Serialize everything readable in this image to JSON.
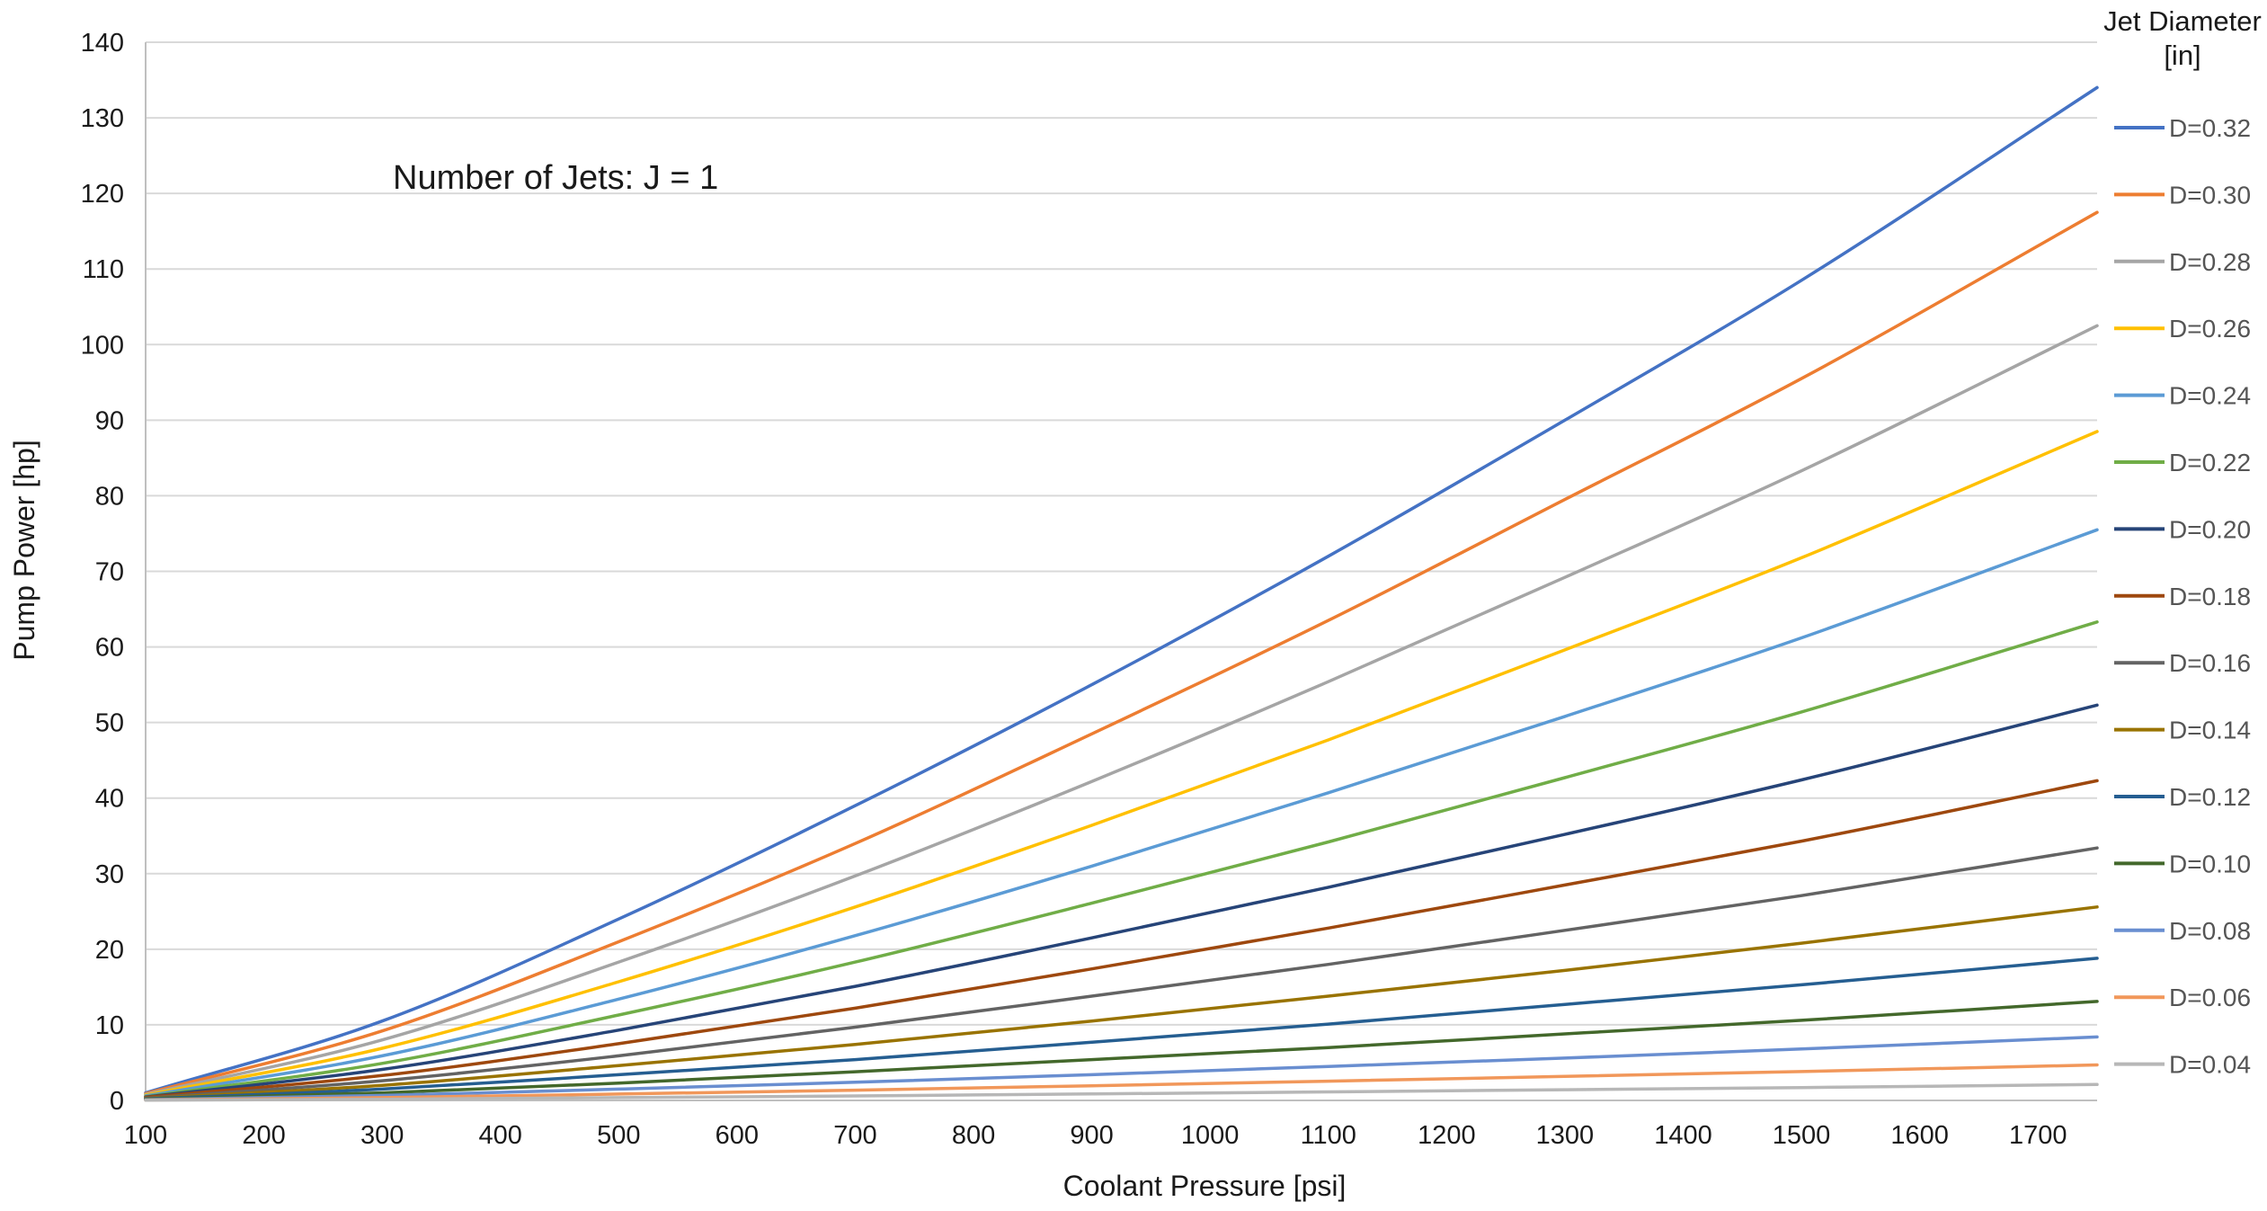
{
  "chart_data": {
    "type": "line",
    "title": "",
    "annotation": "Number of Jets: J = 1",
    "xlabel": "Coolant Pressure [psi]",
    "ylabel": "Pump Power [hp]",
    "xlim": [
      100,
      1750
    ],
    "ylim": [
      0,
      140
    ],
    "x_ticks": [
      100,
      200,
      300,
      400,
      500,
      600,
      700,
      800,
      900,
      1000,
      1100,
      1200,
      1300,
      1400,
      1500,
      1600,
      1700
    ],
    "y_ticks": [
      0,
      10,
      20,
      30,
      40,
      50,
      60,
      70,
      80,
      90,
      100,
      110,
      120,
      130,
      140
    ],
    "grid": "horizontal",
    "legend": {
      "title_line1": "Jet Diameter",
      "title_line2": "[in]",
      "placement": "right"
    },
    "series": [
      {
        "name": "D=0.32",
        "color": "#4472c4",
        "x": [
          100,
          300,
          500,
          700,
          900,
          1100,
          1300,
          1500,
          1750
        ],
        "values": [
          1.0,
          10.5,
          24.0,
          39.0,
          55.0,
          72.0,
          90.0,
          108.5,
          134.0
        ]
      },
      {
        "name": "D=0.30",
        "color": "#ed7d31",
        "x": [
          100,
          300,
          500,
          700,
          900,
          1100,
          1300,
          1500,
          1750
        ],
        "values": [
          0.9,
          9.2,
          21.0,
          34.0,
          48.5,
          63.5,
          79.5,
          95.5,
          117.5
        ]
      },
      {
        "name": "D=0.28",
        "color": "#a5a5a5",
        "x": [
          100,
          300,
          500,
          700,
          900,
          1100,
          1300,
          1500,
          1750
        ],
        "values": [
          0.8,
          8.0,
          18.3,
          29.7,
          42.2,
          55.4,
          69.2,
          83.3,
          102.5
        ]
      },
      {
        "name": "D=0.26",
        "color": "#ffc000",
        "x": [
          100,
          300,
          500,
          700,
          900,
          1100,
          1300,
          1500,
          1750
        ],
        "values": [
          0.7,
          6.9,
          15.7,
          25.6,
          36.4,
          47.7,
          59.6,
          71.8,
          88.5
        ]
      },
      {
        "name": "D=0.24",
        "color": "#5b9bd5",
        "x": [
          100,
          300,
          500,
          700,
          900,
          1100,
          1300,
          1500,
          1750
        ],
        "values": [
          0.6,
          5.9,
          13.4,
          21.8,
          31.0,
          40.7,
          50.8,
          61.2,
          75.5
        ]
      },
      {
        "name": "D=0.22",
        "color": "#70ad47",
        "x": [
          100,
          300,
          500,
          700,
          900,
          1100,
          1300,
          1500,
          1750
        ],
        "values": [
          0.5,
          4.9,
          11.3,
          18.3,
          26.1,
          34.2,
          42.7,
          51.4,
          63.3
        ]
      },
      {
        "name": "D=0.20",
        "color": "#264478",
        "x": [
          100,
          300,
          500,
          700,
          900,
          1100,
          1300,
          1500,
          1750
        ],
        "values": [
          0.45,
          4.1,
          9.3,
          15.1,
          21.5,
          28.2,
          35.2,
          42.4,
          52.3
        ]
      },
      {
        "name": "D=0.18",
        "color": "#9e480e",
        "x": [
          100,
          300,
          500,
          700,
          900,
          1100,
          1300,
          1500,
          1750
        ],
        "values": [
          0.4,
          3.3,
          7.5,
          12.2,
          17.4,
          22.8,
          28.5,
          34.3,
          42.3
        ]
      },
      {
        "name": "D=0.16",
        "color": "#636363",
        "x": [
          100,
          300,
          500,
          700,
          900,
          1100,
          1300,
          1500,
          1750
        ],
        "values": [
          0.3,
          2.6,
          5.9,
          9.7,
          13.8,
          18.0,
          22.5,
          27.1,
          33.4
        ]
      },
      {
        "name": "D=0.14",
        "color": "#997300",
        "x": [
          100,
          300,
          500,
          700,
          900,
          1100,
          1300,
          1500,
          1750
        ],
        "values": [
          0.25,
          2.0,
          4.6,
          7.4,
          10.5,
          13.8,
          17.2,
          20.8,
          25.6
        ]
      },
      {
        "name": "D=0.12",
        "color": "#255e91",
        "x": [
          100,
          300,
          500,
          700,
          900,
          1100,
          1300,
          1500,
          1750
        ],
        "values": [
          0.2,
          1.5,
          3.4,
          5.4,
          7.7,
          10.1,
          12.7,
          15.3,
          18.8
        ]
      },
      {
        "name": "D=0.10",
        "color": "#43682b",
        "x": [
          100,
          300,
          500,
          700,
          900,
          1100,
          1300,
          1500,
          1750
        ],
        "values": [
          0.15,
          1.0,
          2.3,
          3.8,
          5.4,
          7.0,
          8.8,
          10.6,
          13.1
        ]
      },
      {
        "name": "D=0.08",
        "color": "#698ed0",
        "x": [
          100,
          300,
          500,
          700,
          900,
          1100,
          1300,
          1500,
          1750
        ],
        "values": [
          0.1,
          0.65,
          1.5,
          2.4,
          3.4,
          4.5,
          5.6,
          6.8,
          8.4
        ]
      },
      {
        "name": "D=0.06",
        "color": "#f1975a",
        "x": [
          100,
          300,
          500,
          700,
          900,
          1100,
          1300,
          1500,
          1750
        ],
        "values": [
          0.05,
          0.37,
          0.84,
          1.36,
          1.94,
          2.54,
          3.17,
          3.82,
          4.7
        ]
      },
      {
        "name": "D=0.04",
        "color": "#b7b7b7",
        "x": [
          100,
          300,
          500,
          700,
          900,
          1100,
          1300,
          1500,
          1750
        ],
        "values": [
          0.03,
          0.16,
          0.37,
          0.6,
          0.86,
          1.13,
          1.41,
          1.7,
          2.1
        ]
      }
    ]
  }
}
